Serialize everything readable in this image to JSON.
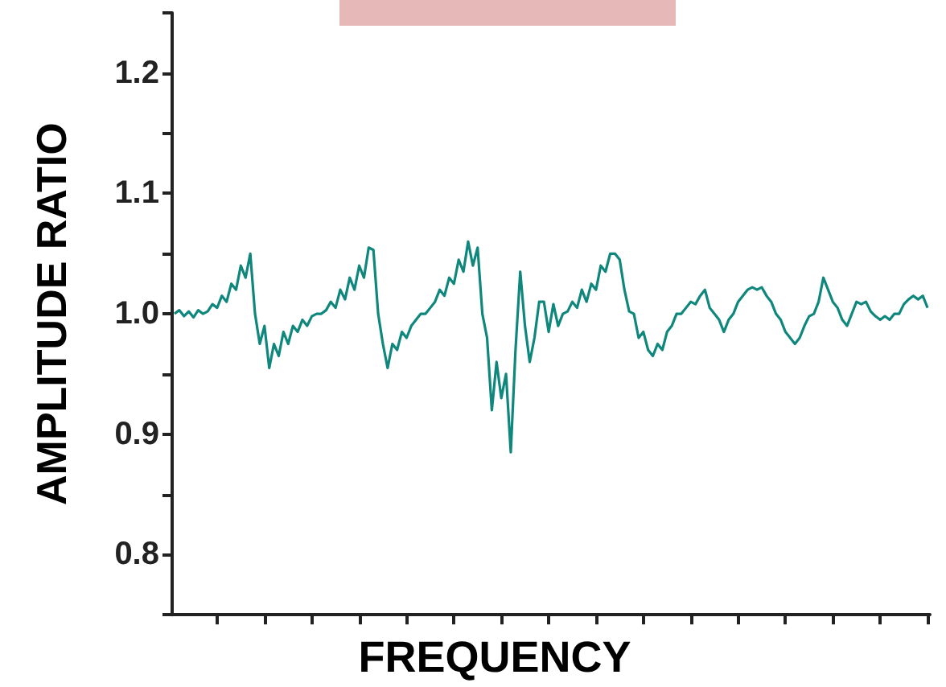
{
  "chart_data": {
    "type": "line",
    "xlabel": "FREQUENCY",
    "ylabel": "AMPLITUDE RATIO",
    "categories": [
      null,
      null,
      null,
      null,
      null,
      null,
      null,
      null,
      null,
      null,
      null,
      null,
      null,
      null,
      null,
      null,
      null,
      null,
      null,
      null,
      null,
      null,
      null,
      null,
      null,
      null,
      null,
      null,
      null,
      null,
      null,
      null,
      null,
      null,
      null,
      null,
      null,
      null,
      null,
      null,
      null,
      null,
      null,
      null,
      null,
      null,
      null,
      null,
      null,
      null,
      null,
      null,
      null,
      null,
      null,
      null,
      null,
      null,
      null,
      null,
      null,
      null,
      null,
      null,
      null,
      null,
      null,
      null,
      null,
      null,
      null,
      null,
      null,
      null,
      null,
      null,
      null,
      null,
      null,
      null,
      null,
      null,
      null,
      null,
      null,
      null,
      null,
      null,
      null,
      null,
      null,
      null,
      null,
      null,
      null,
      null,
      null,
      null,
      null,
      null,
      null,
      null,
      null,
      null,
      null,
      null,
      null,
      null,
      null,
      null,
      null,
      null,
      null,
      null,
      null,
      null,
      null,
      null,
      null,
      null,
      null,
      null,
      null,
      null,
      null,
      null,
      null,
      null,
      null,
      null,
      null,
      null,
      null,
      null,
      null,
      null,
      null,
      null,
      null,
      null,
      null,
      null,
      null,
      null,
      null,
      null,
      null,
      null,
      null,
      null,
      null,
      null,
      null,
      null,
      null,
      null,
      null,
      null,
      null,
      null
    ],
    "ylim": [
      0.75,
      1.25
    ],
    "yticks": [
      {
        "value": 0.75,
        "label": null
      },
      0.8,
      {
        "value": 0.85,
        "label": null
      },
      0.9,
      {
        "value": 0.95,
        "label": null
      },
      {
        "value": 1,
        "label": "1.0"
      },
      {
        "value": 1.05,
        "label": null
      },
      1.1,
      {
        "value": 1.15,
        "label": null
      },
      1.2,
      {
        "value": 1.25,
        "label": null
      }
    ],
    "grid": false,
    "marker": "none",
    "line_style": "solid",
    "series": [
      {
        "color": "#10877d",
        "values": [
          1.0,
          1.003,
          0.998,
          1.002,
          0.997,
          1.003,
          1.0,
          1.002,
          1.008,
          1.005,
          1.015,
          1.01,
          1.025,
          1.02,
          1.04,
          1.03,
          1.05,
          1.0,
          0.975,
          0.99,
          0.955,
          0.975,
          0.965,
          0.985,
          0.975,
          0.99,
          0.985,
          0.995,
          0.99,
          0.998,
          1.0,
          1.0,
          1.003,
          1.01,
          1.005,
          1.02,
          1.012,
          1.03,
          1.02,
          1.04,
          1.03,
          1.055,
          1.053,
          1.0,
          0.975,
          0.955,
          0.975,
          0.97,
          0.985,
          0.98,
          0.99,
          0.995,
          1.0,
          1.0,
          1.005,
          1.01,
          1.02,
          1.015,
          1.03,
          1.025,
          1.045,
          1.035,
          1.06,
          1.04,
          1.055,
          1.0,
          0.98,
          0.92,
          0.96,
          0.93,
          0.95,
          0.885,
          0.97,
          1.035,
          0.99,
          0.96,
          0.98,
          1.01,
          1.01,
          0.985,
          1.008,
          0.99,
          1.0,
          1.002,
          1.01,
          1.005,
          1.02,
          1.01,
          1.025,
          1.02,
          1.04,
          1.035,
          1.05,
          1.05,
          1.045,
          1.02,
          1.002,
          1.0,
          0.98,
          0.985,
          0.97,
          0.965,
          0.975,
          0.97,
          0.985,
          0.99,
          1.0,
          1.0,
          1.005,
          1.01,
          1.008,
          1.015,
          1.02,
          1.005,
          1.0,
          0.995,
          0.985,
          0.995,
          1.0,
          1.01,
          1.015,
          1.02,
          1.022,
          1.02,
          1.022,
          1.015,
          1.01,
          1.0,
          0.995,
          0.985,
          0.98,
          0.975,
          0.98,
          0.99,
          0.998,
          1.0,
          1.01,
          1.03,
          1.02,
          1.01,
          1.005,
          0.995,
          0.99,
          1.0,
          1.01,
          1.008,
          1.01,
          1.002,
          0.998,
          0.995,
          0.998,
          0.995,
          1.0,
          1.0,
          1.008,
          1.012,
          1.015,
          1.012,
          1.015,
          1.005
        ]
      }
    ]
  }
}
